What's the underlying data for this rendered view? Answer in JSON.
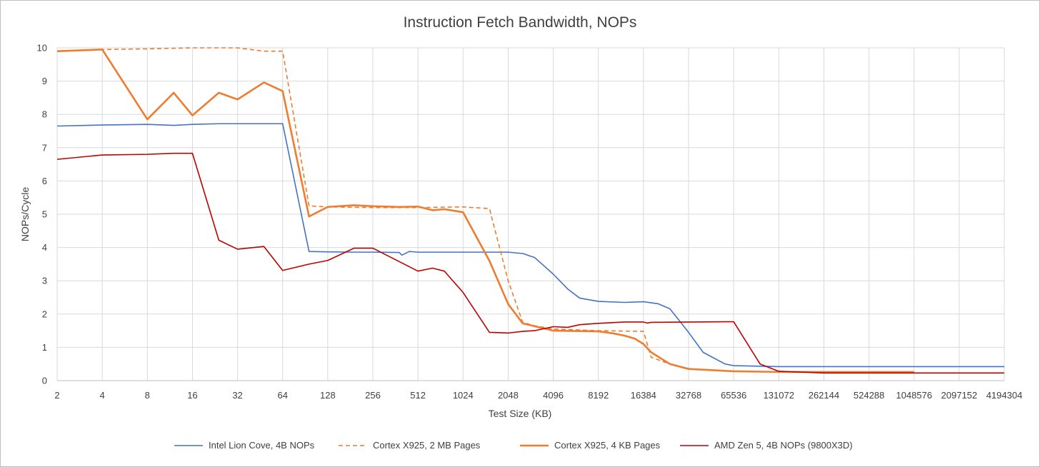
{
  "chart_data": {
    "type": "line",
    "title": "Instruction Fetch Bandwidth, NOPs",
    "xlabel": "Test Size (KB)",
    "ylabel": "NOPs/Cycle",
    "x_scale": "log2",
    "xlim": [
      2,
      4194304
    ],
    "ylim": [
      0,
      10
    ],
    "y_ticks": [
      "0",
      "1",
      "2",
      "3",
      "4",
      "5",
      "6",
      "7",
      "8",
      "9",
      "10"
    ],
    "x_ticks": [
      "2",
      "4",
      "8",
      "16",
      "32",
      "64",
      "128",
      "256",
      "512",
      "1024",
      "2048",
      "4096",
      "8192",
      "16384",
      "32768",
      "65536",
      "131072",
      "262144",
      "524288",
      "1048576",
      "2097152",
      "4194304"
    ],
    "grid": true,
    "legend_position": "bottom",
    "series": [
      {
        "name": "Intel Lion Cove, 4B NOPs",
        "color": "#4472c4",
        "dash": "solid",
        "width": "thin",
        "points": [
          [
            2,
            7.65
          ],
          [
            4,
            7.68
          ],
          [
            8,
            7.7
          ],
          [
            12,
            7.67
          ],
          [
            16,
            7.7
          ],
          [
            24,
            7.72
          ],
          [
            32,
            7.72
          ],
          [
            48,
            7.72
          ],
          [
            64,
            7.72
          ],
          [
            96,
            3.88
          ],
          [
            128,
            3.87
          ],
          [
            192,
            3.86
          ],
          [
            256,
            3.86
          ],
          [
            384,
            3.85
          ],
          [
            400,
            3.77
          ],
          [
            448,
            3.88
          ],
          [
            512,
            3.86
          ],
          [
            1024,
            3.86
          ],
          [
            2048,
            3.86
          ],
          [
            2560,
            3.82
          ],
          [
            3072,
            3.7
          ],
          [
            4096,
            3.2
          ],
          [
            5120,
            2.75
          ],
          [
            6144,
            2.48
          ],
          [
            8192,
            2.38
          ],
          [
            12288,
            2.35
          ],
          [
            16384,
            2.37
          ],
          [
            20480,
            2.31
          ],
          [
            24576,
            2.16
          ],
          [
            32768,
            1.45
          ],
          [
            40960,
            0.85
          ],
          [
            57344,
            0.5
          ],
          [
            65536,
            0.45
          ],
          [
            131072,
            0.42
          ],
          [
            4194304,
            0.42
          ]
        ]
      },
      {
        "name": "Cortex X925, 2 MB Pages",
        "color": "#ed7d31",
        "dash": "dashed",
        "width": "thin",
        "points": [
          [
            2,
            9.9
          ],
          [
            4,
            9.95
          ],
          [
            8,
            9.97
          ],
          [
            16,
            10.0
          ],
          [
            32,
            10.0
          ],
          [
            48,
            9.9
          ],
          [
            64,
            9.9
          ],
          [
            96,
            5.25
          ],
          [
            128,
            5.22
          ],
          [
            256,
            5.2
          ],
          [
            512,
            5.2
          ],
          [
            1024,
            5.22
          ],
          [
            1536,
            5.17
          ],
          [
            2048,
            3.0
          ],
          [
            2560,
            1.75
          ],
          [
            3072,
            1.65
          ],
          [
            4096,
            1.55
          ],
          [
            8192,
            1.5
          ],
          [
            16384,
            1.48
          ],
          [
            18432,
            0.7
          ],
          [
            24576,
            0.5
          ],
          [
            32768,
            0.35
          ],
          [
            65536,
            0.28
          ],
          [
            131072,
            0.26
          ],
          [
            1048576,
            0.26
          ]
        ]
      },
      {
        "name": "Cortex X925, 4 KB Pages",
        "color": "#ed7d31",
        "dash": "solid",
        "width": "thick",
        "points": [
          [
            2,
            9.9
          ],
          [
            4,
            9.95
          ],
          [
            8,
            7.85
          ],
          [
            12,
            8.65
          ],
          [
            16,
            7.97
          ],
          [
            24,
            8.65
          ],
          [
            32,
            8.45
          ],
          [
            48,
            8.96
          ],
          [
            64,
            8.7
          ],
          [
            96,
            4.93
          ],
          [
            128,
            5.22
          ],
          [
            192,
            5.27
          ],
          [
            256,
            5.24
          ],
          [
            384,
            5.22
          ],
          [
            512,
            5.23
          ],
          [
            640,
            5.12
          ],
          [
            768,
            5.15
          ],
          [
            1024,
            5.06
          ],
          [
            1536,
            3.6
          ],
          [
            2048,
            2.3
          ],
          [
            2560,
            1.72
          ],
          [
            4096,
            1.5
          ],
          [
            8192,
            1.48
          ],
          [
            10240,
            1.42
          ],
          [
            12288,
            1.35
          ],
          [
            14336,
            1.26
          ],
          [
            16384,
            1.1
          ],
          [
            18432,
            0.85
          ],
          [
            24576,
            0.5
          ],
          [
            32768,
            0.35
          ],
          [
            65536,
            0.28
          ],
          [
            131072,
            0.26
          ],
          [
            1048576,
            0.26
          ]
        ]
      },
      {
        "name": "AMD Zen 5, 4B NOPs (9800X3D)",
        "color": "#c00000",
        "dash": "solid",
        "width": "thin",
        "points": [
          [
            2,
            6.65
          ],
          [
            4,
            6.78
          ],
          [
            8,
            6.8
          ],
          [
            12,
            6.83
          ],
          [
            16,
            6.83
          ],
          [
            24,
            4.22
          ],
          [
            32,
            3.95
          ],
          [
            48,
            4.03
          ],
          [
            64,
            3.31
          ],
          [
            96,
            3.5
          ],
          [
            128,
            3.61
          ],
          [
            192,
            3.98
          ],
          [
            256,
            3.98
          ],
          [
            512,
            3.29
          ],
          [
            640,
            3.38
          ],
          [
            768,
            3.29
          ],
          [
            1024,
            2.65
          ],
          [
            1536,
            1.45
          ],
          [
            2048,
            1.43
          ],
          [
            2560,
            1.48
          ],
          [
            3072,
            1.5
          ],
          [
            4096,
            1.62
          ],
          [
            5120,
            1.6
          ],
          [
            6144,
            1.68
          ],
          [
            8192,
            1.72
          ],
          [
            12288,
            1.76
          ],
          [
            16384,
            1.76
          ],
          [
            17408,
            1.73
          ],
          [
            18432,
            1.75
          ],
          [
            65536,
            1.77
          ],
          [
            98304,
            0.5
          ],
          [
            131072,
            0.28
          ],
          [
            262144,
            0.23
          ],
          [
            4194304,
            0.23
          ]
        ]
      }
    ]
  }
}
